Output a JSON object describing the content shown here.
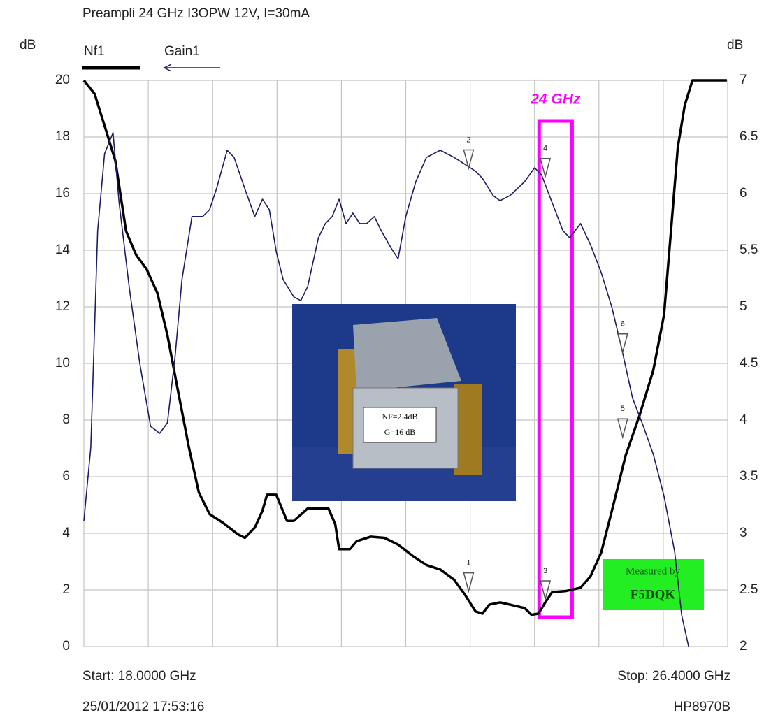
{
  "chart_data": {
    "type": "line",
    "title": "Preampli 24 GHz I3OPW 12V, I=30mA",
    "y_label": "dB",
    "y2_label": "dB",
    "start_label": "Start: 18.0000 GHz",
    "stop_label": "Stop: 26.4000 GHz",
    "timestamp": "25/01/2012 17:53:16",
    "instrument": "HP8970B",
    "xlim": [
      18,
      26.4
    ],
    "xticks": [
      18,
      18.84,
      19.68,
      20.52,
      21.36,
      22.2,
      23.04,
      23.88,
      24.72,
      25.56,
      26.4
    ],
    "ylim": [
      0,
      20
    ],
    "yticks": [
      0,
      2,
      4,
      6,
      8,
      10,
      12,
      14,
      16,
      18,
      20
    ],
    "y2lim": [
      2,
      7
    ],
    "y2ticks": [
      2,
      2.5,
      3,
      3.5,
      4,
      4.5,
      5,
      5.5,
      6,
      6.5,
      7
    ],
    "grid": true,
    "series": [
      {
        "name": "Nf1",
        "color": "#000000",
        "axis": "y2",
        "x": [
          18.0,
          18.14,
          18.27,
          18.41,
          18.55,
          18.68,
          18.82,
          18.96,
          19.09,
          19.23,
          19.37,
          19.5,
          19.64,
          19.82,
          20.01,
          20.1,
          20.23,
          20.33,
          20.39,
          20.51,
          20.65,
          20.74,
          20.92,
          21.19,
          21.28,
          21.33,
          21.47,
          21.56,
          21.74,
          21.92,
          22.1,
          22.29,
          22.47,
          22.65,
          22.83,
          22.97,
          23.11,
          23.2,
          23.29,
          23.43,
          23.56,
          23.75,
          23.84,
          23.93,
          24.02,
          24.11,
          24.29,
          24.48,
          24.61,
          24.75,
          24.89,
          25.07,
          25.25,
          25.43,
          25.57,
          25.66,
          25.75,
          25.84,
          25.94,
          26.39
        ],
        "values": [
          7.0,
          6.88,
          6.6,
          6.29,
          5.67,
          5.46,
          5.33,
          5.12,
          4.75,
          4.25,
          3.76,
          3.36,
          3.17,
          3.09,
          2.99,
          2.96,
          3.05,
          3.2,
          3.34,
          3.34,
          3.11,
          3.11,
          3.22,
          3.22,
          3.08,
          2.86,
          2.86,
          2.93,
          2.97,
          2.96,
          2.9,
          2.8,
          2.72,
          2.68,
          2.59,
          2.46,
          2.31,
          2.29,
          2.37,
          2.39,
          2.37,
          2.34,
          2.28,
          2.29,
          2.39,
          2.48,
          2.49,
          2.52,
          2.62,
          2.83,
          3.2,
          3.69,
          4.04,
          4.44,
          4.93,
          5.67,
          6.41,
          6.78,
          7.0,
          7.0
        ]
      },
      {
        "name": "Gain1",
        "color": "#1c1c66",
        "x": [
          18.0,
          18.09,
          18.18,
          18.27,
          18.38,
          18.46,
          18.59,
          18.73,
          18.87,
          18.99,
          19.09,
          19.19,
          19.28,
          19.41,
          19.55,
          19.64,
          19.73,
          19.87,
          19.96,
          20.1,
          20.23,
          20.33,
          20.42,
          20.51,
          20.6,
          20.74,
          20.83,
          20.92,
          21.06,
          21.15,
          21.24,
          21.33,
          21.42,
          21.51,
          21.6,
          21.69,
          21.79,
          21.88,
          22.01,
          22.1,
          22.2,
          22.33,
          22.47,
          22.65,
          22.83,
          22.97,
          23.11,
          23.2,
          23.34,
          23.43,
          23.56,
          23.75,
          23.88,
          23.97,
          24.11,
          24.25,
          24.34,
          24.48,
          24.61,
          24.75,
          24.89,
          25.02,
          25.16,
          25.3,
          25.43,
          25.57,
          25.71,
          25.8,
          25.89
        ],
        "values": [
          4.44,
          7.04,
          14.69,
          17.41,
          18.15,
          15.68,
          12.72,
          10.0,
          7.78,
          7.53,
          7.9,
          10.25,
          12.96,
          15.19,
          15.19,
          15.43,
          16.17,
          17.53,
          17.28,
          16.17,
          15.19,
          15.8,
          15.43,
          13.95,
          12.96,
          12.35,
          12.22,
          12.72,
          14.44,
          14.94,
          15.19,
          15.8,
          14.94,
          15.31,
          14.94,
          14.94,
          15.19,
          14.69,
          14.07,
          13.7,
          15.19,
          16.42,
          17.28,
          17.53,
          17.28,
          17.04,
          16.79,
          16.54,
          15.93,
          15.75,
          15.93,
          16.42,
          16.91,
          16.67,
          15.68,
          14.69,
          14.44,
          14.94,
          14.2,
          13.21,
          11.98,
          10.49,
          8.77,
          7.78,
          6.79,
          5.31,
          3.33,
          1.11,
          0
        ]
      }
    ],
    "markers": [
      {
        "label": "1",
        "series": 0,
        "x": 23.02,
        "value": 2.49
      },
      {
        "label": "2",
        "series": 1,
        "x": 23.02,
        "value": 16.9
      },
      {
        "label": "3",
        "series": 0,
        "x": 24.02,
        "value": 2.42
      },
      {
        "label": "4",
        "series": 1,
        "x": 24.02,
        "value": 16.6
      },
      {
        "label": "5",
        "series": 0,
        "x": 25.03,
        "value": 3.85
      },
      {
        "label": "6",
        "series": 1,
        "x": 25.03,
        "value": 10.4
      }
    ],
    "highlight": {
      "label": "24 GHz",
      "color": "#ff00ff",
      "x": [
        23.94,
        24.37
      ]
    },
    "inset": {
      "label_lines": [
        "NF=2.4dB",
        "G=16 dB"
      ]
    },
    "stamp": {
      "lines": [
        "Measured by",
        "F5DQK"
      ]
    }
  }
}
